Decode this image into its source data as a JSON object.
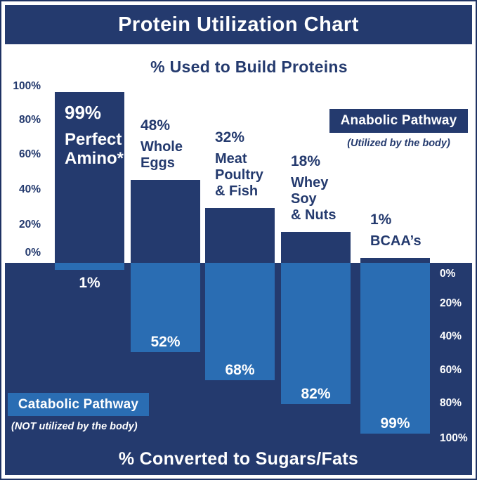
{
  "title": "Protein Utilization Chart",
  "top_section": {
    "subtitle": "% Used to Build Proteins"
  },
  "bottom_section": {
    "subtitle": "% Converted to Sugars/Fats"
  },
  "legend": {
    "anabolic": {
      "label": "Anabolic Pathway",
      "caption": "(Utilized by the body)"
    },
    "catabolic": {
      "label": "Catabolic Pathway",
      "caption": "(NOT utilized by the body)"
    }
  },
  "colors": {
    "navy": "#243a6e",
    "navy_dark": "#1e3263",
    "light_blue": "#2a6db3",
    "white": "#ffffff"
  },
  "chart_data": {
    "type": "bar",
    "title": "Protein Utilization Chart",
    "top_axis_title": "% Used to Build Proteins",
    "bottom_axis_title": "% Converted to Sugars/Fats",
    "categories": [
      "Perfect Amino*",
      "Whole Eggs",
      "Meat Poultry & Fish",
      "Whey Soy & Nuts",
      "BCAA’s"
    ],
    "series": [
      {
        "name": "Anabolic Pathway (Utilized by the body)",
        "color": "#243a6e",
        "values": [
          99,
          48,
          32,
          18,
          1
        ]
      },
      {
        "name": "Catabolic Pathway (NOT utilized by the body)",
        "color": "#2a6db3",
        "values": [
          1,
          52,
          68,
          82,
          99
        ]
      }
    ],
    "bars": [
      {
        "category_lines": [
          "Perfect",
          "Amino*"
        ],
        "anabolic_label": "99%",
        "catabolic_label": "1%"
      },
      {
        "category_lines": [
          "Whole",
          "Eggs"
        ],
        "anabolic_label": "48%",
        "catabolic_label": "52%"
      },
      {
        "category_lines": [
          "Meat",
          "Poultry",
          "& Fish"
        ],
        "anabolic_label": "32%",
        "catabolic_label": "68%"
      },
      {
        "category_lines": [
          "Whey",
          "Soy",
          "& Nuts"
        ],
        "anabolic_label": "18%",
        "catabolic_label": "82%"
      },
      {
        "category_lines": [
          "BCAA’s"
        ],
        "anabolic_label": "1%",
        "catabolic_label": "99%"
      }
    ],
    "y_axis_top_ticks": [
      "100%",
      "80%",
      "60%",
      "40%",
      "20%",
      "0%"
    ],
    "y_axis_bottom_ticks": [
      "0%",
      "20%",
      "40%",
      "60%",
      "80%",
      "100%"
    ],
    "ylim_top": [
      0,
      100
    ],
    "ylim_bottom": [
      0,
      100
    ],
    "grid": false,
    "legend_position": {
      "anabolic": "upper right",
      "catabolic": "lower left"
    }
  }
}
